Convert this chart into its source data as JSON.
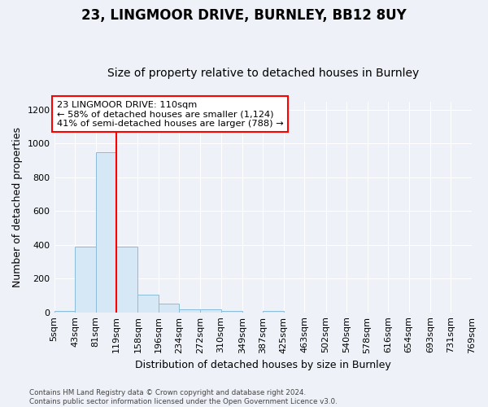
{
  "title": "23, LINGMOOR DRIVE, BURNLEY, BB12 8UY",
  "subtitle": "Size of property relative to detached houses in Burnley",
  "xlabel": "Distribution of detached houses by size in Burnley",
  "ylabel": "Number of detached properties",
  "bin_edges": [
    5,
    43,
    81,
    119,
    158,
    196,
    234,
    272,
    310,
    349,
    387,
    425,
    463,
    502,
    540,
    578,
    616,
    654,
    693,
    731,
    769
  ],
  "bin_labels": [
    "5sqm",
    "43sqm",
    "81sqm",
    "119sqm",
    "158sqm",
    "196sqm",
    "234sqm",
    "272sqm",
    "310sqm",
    "349sqm",
    "387sqm",
    "425sqm",
    "463sqm",
    "502sqm",
    "540sqm",
    "578sqm",
    "616sqm",
    "654sqm",
    "693sqm",
    "731sqm",
    "769sqm"
  ],
  "bar_heights": [
    10,
    390,
    950,
    390,
    105,
    50,
    20,
    20,
    10,
    0,
    10,
    0,
    0,
    0,
    0,
    0,
    0,
    0,
    0,
    0
  ],
  "bar_color": "#d6e8f5",
  "bar_edge_color": "#8bbdd9",
  "red_line_x": 119,
  "annotation_text": "23 LINGMOOR DRIVE: 110sqm\n← 58% of detached houses are smaller (1,124)\n41% of semi-detached houses are larger (788) →",
  "ylim": [
    0,
    1250
  ],
  "yticks": [
    0,
    200,
    400,
    600,
    800,
    1000,
    1200
  ],
  "footer_line1": "Contains HM Land Registry data © Crown copyright and database right 2024.",
  "footer_line2": "Contains public sector information licensed under the Open Government Licence v3.0.",
  "background_color": "#eef2f8",
  "grid_color": "#ffffff",
  "title_fontsize": 12,
  "subtitle_fontsize": 10,
  "axis_label_fontsize": 9,
  "tick_fontsize": 8
}
